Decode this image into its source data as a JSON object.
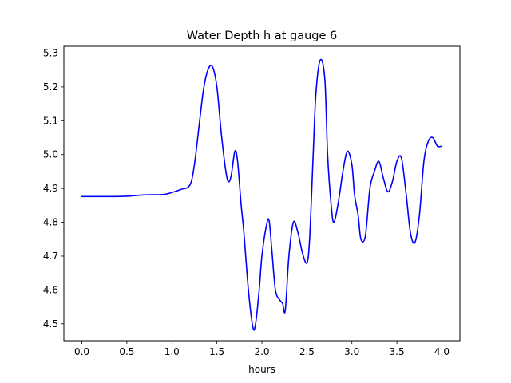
{
  "chart_data": {
    "type": "line",
    "title": "Water Depth h at gauge 6",
    "xlabel": "hours",
    "ylabel": "",
    "xlim": [
      -0.2,
      4.2
    ],
    "ylim": [
      4.45,
      5.32
    ],
    "xticks": [
      0.0,
      0.5,
      1.0,
      1.5,
      2.0,
      2.5,
      3.0,
      3.5,
      4.0
    ],
    "xtick_labels": [
      "0.0",
      "0.5",
      "1.0",
      "1.5",
      "2.0",
      "2.5",
      "3.0",
      "3.5",
      "4.0"
    ],
    "yticks": [
      4.5,
      4.6,
      4.7,
      4.8,
      4.9,
      5.0,
      5.1,
      5.2,
      5.3
    ],
    "ytick_labels": [
      "4.5",
      "4.6",
      "4.7",
      "4.8",
      "4.9",
      "5.0",
      "5.1",
      "5.2",
      "5.3"
    ],
    "grid": false,
    "legend": "none",
    "series": [
      {
        "color": "#0000ff",
        "x": [
          0.0,
          0.3,
          0.5,
          0.7,
          0.9,
          1.0,
          1.1,
          1.2,
          1.25,
          1.3,
          1.35,
          1.4,
          1.45,
          1.5,
          1.55,
          1.6,
          1.63,
          1.66,
          1.7,
          1.73,
          1.77,
          1.8,
          1.85,
          1.9,
          1.93,
          1.97,
          2.0,
          2.05,
          2.08,
          2.11,
          2.15,
          2.2,
          2.23,
          2.26,
          2.3,
          2.35,
          2.4,
          2.45,
          2.5,
          2.53,
          2.57,
          2.6,
          2.65,
          2.7,
          2.73,
          2.77,
          2.8,
          2.85,
          2.9,
          2.95,
          3.0,
          3.03,
          3.07,
          3.1,
          3.15,
          3.2,
          3.25,
          3.3,
          3.35,
          3.4,
          3.45,
          3.5,
          3.55,
          3.6,
          3.65,
          3.7,
          3.75,
          3.8,
          3.85,
          3.9,
          3.95,
          4.0
        ],
        "y": [
          4.876,
          4.876,
          4.877,
          4.881,
          4.882,
          4.888,
          4.897,
          4.91,
          4.97,
          5.08,
          5.19,
          5.25,
          5.26,
          5.2,
          5.06,
          4.95,
          4.92,
          4.94,
          5.01,
          4.98,
          4.85,
          4.77,
          4.6,
          4.49,
          4.5,
          4.6,
          4.7,
          4.79,
          4.805,
          4.72,
          4.6,
          4.57,
          4.56,
          4.54,
          4.7,
          4.8,
          4.77,
          4.71,
          4.68,
          4.75,
          5.0,
          5.18,
          5.28,
          5.22,
          5.0,
          4.85,
          4.8,
          4.86,
          4.95,
          5.01,
          4.97,
          4.88,
          4.82,
          4.75,
          4.76,
          4.9,
          4.95,
          4.98,
          4.93,
          4.89,
          4.92,
          4.98,
          4.99,
          4.89,
          4.77,
          4.74,
          4.82,
          4.98,
          5.04,
          5.05,
          5.025,
          5.025
        ]
      }
    ]
  }
}
